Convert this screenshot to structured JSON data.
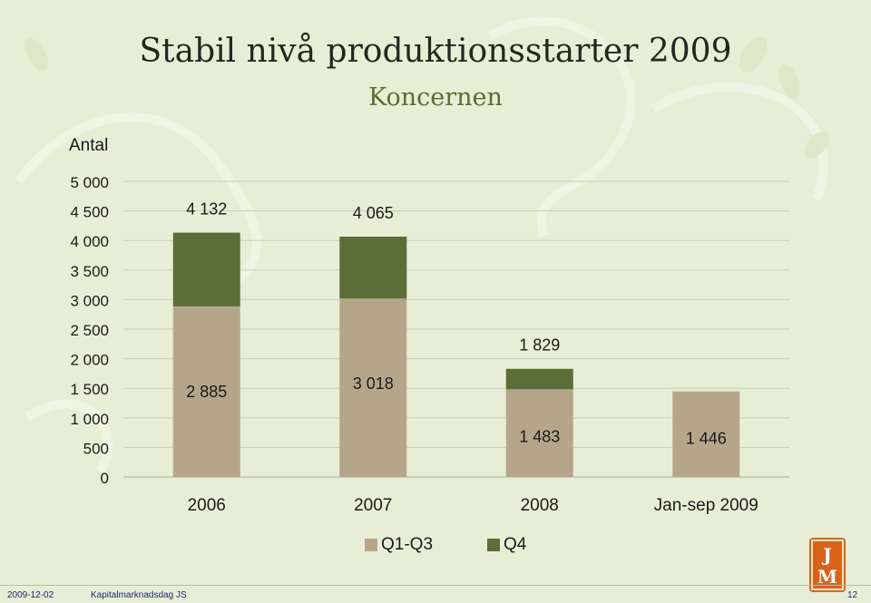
{
  "title": "Stabil nivå produktionsstarter 2009",
  "subtitle": "Koncernen",
  "colors": {
    "q1q3": "#b5a68b",
    "q4": "#5b6d38",
    "grid": "#c9cdb6"
  },
  "chart_data": {
    "type": "bar",
    "stacked": true,
    "ylabel": "Antal",
    "ylim": [
      0,
      5000
    ],
    "yticks": [
      "0",
      "500",
      "1 000",
      "1 500",
      "2 000",
      "2 500",
      "3 000",
      "3 500",
      "4 000",
      "4 500",
      "5 000"
    ],
    "categories": [
      "2006",
      "2007",
      "2008",
      "Jan-sep 2009"
    ],
    "series": [
      {
        "name": "Q1-Q3",
        "values": [
          2885,
          3018,
          1483,
          1446
        ],
        "labels": [
          "2 885",
          "3 018",
          "1 483",
          "1 446"
        ]
      },
      {
        "name": "Q4",
        "values": [
          1247,
          1047,
          346,
          null
        ]
      }
    ],
    "totals": [
      4132,
      4065,
      1829,
      null
    ],
    "total_labels": [
      "4 132",
      "4 065",
      "1 829",
      ""
    ],
    "legend": "bottom-center",
    "grid": true
  },
  "footer": {
    "date": "2009-12-02",
    "event": "Kapitalmarknadsdag JS",
    "page": "12"
  },
  "logo_text": "JM"
}
